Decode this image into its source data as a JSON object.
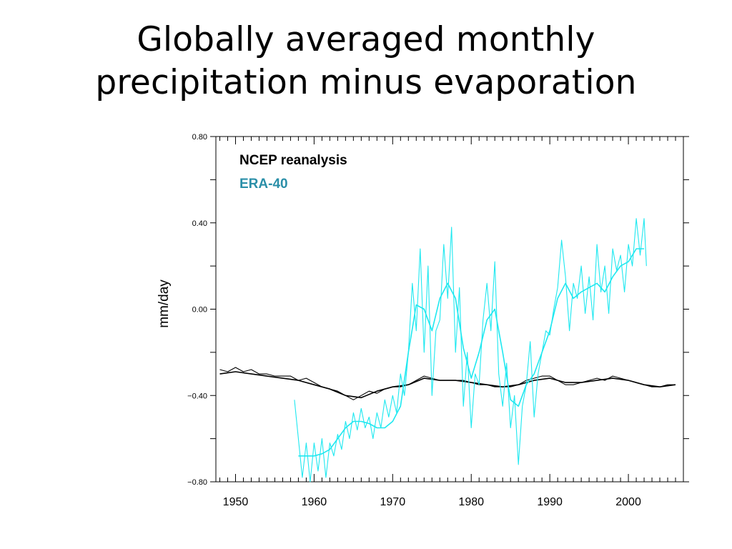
{
  "slide": {
    "title_line1": "Globally averaged monthly",
    "title_line2": "precipitation minus evaporation"
  },
  "chart_data": {
    "type": "line",
    "title": "",
    "xlabel": "",
    "ylabel": "mm/day",
    "xlim": [
      1947.5,
      2007
    ],
    "ylim": [
      -0.8,
      0.8
    ],
    "xticks": [
      1950,
      1960,
      1970,
      1980,
      1990,
      2000
    ],
    "xtick_labels": [
      "1950",
      "1960",
      "1970",
      "1980",
      "1990",
      "2000"
    ],
    "yticks": [
      -0.8,
      -0.4,
      0.0,
      0.4,
      0.8
    ],
    "ytick_labels": [
      "−0.80",
      "−0.40",
      "0.00",
      "0.40",
      "0.80"
    ],
    "grid": false,
    "legend_position": "top-left",
    "legend": [
      "NCEP reanalysis",
      "ERA-40"
    ],
    "colors": {
      "NCEP reanalysis": "#000000",
      "ERA-40": "#1ee8f0"
    },
    "series": [
      {
        "name": "NCEP reanalysis",
        "style": "monthly",
        "x": [
          1948,
          1949,
          1950,
          1951,
          1952,
          1953,
          1954,
          1955,
          1956,
          1957,
          1958,
          1959,
          1960,
          1961,
          1962,
          1963,
          1964,
          1965,
          1966,
          1967,
          1968,
          1969,
          1970,
          1971,
          1972,
          1973,
          1974,
          1975,
          1976,
          1977,
          1978,
          1979,
          1980,
          1981,
          1982,
          1983,
          1984,
          1985,
          1986,
          1987,
          1988,
          1989,
          1990,
          1991,
          1992,
          1993,
          1994,
          1995,
          1996,
          1997,
          1998,
          1999,
          2000,
          2001,
          2002,
          2003,
          2004,
          2005,
          2006
        ],
        "y": [
          -0.28,
          -0.29,
          -0.27,
          -0.29,
          -0.28,
          -0.3,
          -0.3,
          -0.31,
          -0.31,
          -0.31,
          -0.33,
          -0.32,
          -0.34,
          -0.36,
          -0.37,
          -0.38,
          -0.4,
          -0.42,
          -0.4,
          -0.38,
          -0.39,
          -0.37,
          -0.36,
          -0.36,
          -0.35,
          -0.33,
          -0.31,
          -0.32,
          -0.33,
          -0.33,
          -0.33,
          -0.33,
          -0.34,
          -0.35,
          -0.35,
          -0.36,
          -0.36,
          -0.36,
          -0.35,
          -0.33,
          -0.32,
          -0.31,
          -0.31,
          -0.33,
          -0.35,
          -0.35,
          -0.34,
          -0.33,
          -0.32,
          -0.33,
          -0.31,
          -0.32,
          -0.33,
          -0.34,
          -0.35,
          -0.36,
          -0.36,
          -0.35,
          -0.35
        ]
      },
      {
        "name": "NCEP reanalysis",
        "style": "smoothed",
        "x": [
          1948,
          1950,
          1952,
          1954,
          1956,
          1958,
          1960,
          1962,
          1964,
          1966,
          1968,
          1970,
          1972,
          1974,
          1976,
          1978,
          1980,
          1982,
          1984,
          1986,
          1988,
          1990,
          1992,
          1994,
          1996,
          1998,
          2000,
          2002,
          2004,
          2006
        ],
        "y": [
          -0.3,
          -0.29,
          -0.3,
          -0.31,
          -0.32,
          -0.33,
          -0.35,
          -0.37,
          -0.4,
          -0.41,
          -0.38,
          -0.36,
          -0.35,
          -0.32,
          -0.33,
          -0.33,
          -0.34,
          -0.35,
          -0.36,
          -0.35,
          -0.33,
          -0.32,
          -0.34,
          -0.34,
          -0.33,
          -0.32,
          -0.33,
          -0.35,
          -0.36,
          -0.35
        ]
      },
      {
        "name": "ERA-40",
        "style": "monthly",
        "x": [
          1957.5,
          1958.0,
          1958.5,
          1959.0,
          1959.5,
          1960.0,
          1960.5,
          1961.0,
          1961.5,
          1962.0,
          1962.5,
          1963.0,
          1963.5,
          1964.0,
          1964.5,
          1965.0,
          1965.5,
          1966.0,
          1966.5,
          1967.0,
          1967.5,
          1968.0,
          1968.5,
          1969.0,
          1969.5,
          1970.0,
          1970.5,
          1971.0,
          1971.5,
          1972.0,
          1972.5,
          1973.0,
          1973.5,
          1974.0,
          1974.5,
          1975.0,
          1975.5,
          1976.0,
          1976.5,
          1977.0,
          1977.5,
          1978.0,
          1978.5,
          1979.0,
          1979.5,
          1980.0,
          1980.5,
          1981.0,
          1981.5,
          1982.0,
          1982.5,
          1983.0,
          1983.5,
          1984.0,
          1984.5,
          1985.0,
          1985.5,
          1986.0,
          1986.5,
          1987.0,
          1987.5,
          1988.0,
          1988.5,
          1989.0,
          1989.5,
          1990.0,
          1990.5,
          1991.0,
          1991.5,
          1992.0,
          1992.5,
          1993.0,
          1993.5,
          1994.0,
          1994.5,
          1995.0,
          1995.5,
          1996.0,
          1996.5,
          1997.0,
          1997.5,
          1998.0,
          1998.5,
          1999.0,
          1999.5,
          2000.0,
          2000.5,
          2001.0,
          2001.5,
          2002.0,
          2002.3
        ],
        "y": [
          -0.42,
          -0.6,
          -0.78,
          -0.62,
          -0.8,
          -0.62,
          -0.75,
          -0.6,
          -0.78,
          -0.62,
          -0.68,
          -0.58,
          -0.65,
          -0.52,
          -0.6,
          -0.48,
          -0.56,
          -0.46,
          -0.55,
          -0.5,
          -0.6,
          -0.48,
          -0.55,
          -0.42,
          -0.5,
          -0.4,
          -0.48,
          -0.3,
          -0.4,
          -0.2,
          0.12,
          -0.1,
          0.28,
          -0.2,
          0.2,
          -0.4,
          -0.1,
          -0.05,
          0.3,
          0.05,
          0.38,
          -0.2,
          0.1,
          -0.45,
          -0.2,
          -0.55,
          -0.3,
          -0.35,
          -0.05,
          0.12,
          -0.1,
          0.22,
          -0.3,
          -0.45,
          -0.25,
          -0.55,
          -0.4,
          -0.72,
          -0.45,
          -0.35,
          -0.15,
          -0.5,
          -0.3,
          -0.2,
          -0.1,
          -0.12,
          0.0,
          0.1,
          0.32,
          0.15,
          -0.1,
          0.12,
          0.05,
          0.2,
          -0.02,
          0.15,
          -0.05,
          0.3,
          0.08,
          0.2,
          -0.02,
          0.28,
          0.18,
          0.25,
          0.08,
          0.3,
          0.2,
          0.42,
          0.25,
          0.42,
          0.2
        ]
      },
      {
        "name": "ERA-40",
        "style": "smoothed",
        "x": [
          1958,
          1959,
          1960,
          1961,
          1962,
          1963,
          1964,
          1965,
          1966,
          1967,
          1968,
          1969,
          1970,
          1971,
          1972,
          1973,
          1974,
          1975,
          1976,
          1977,
          1978,
          1979,
          1980,
          1981,
          1982,
          1983,
          1984,
          1985,
          1986,
          1987,
          1988,
          1989,
          1990,
          1991,
          1992,
          1993,
          1994,
          1995,
          1996,
          1997,
          1998,
          1999,
          2000,
          2001,
          2002
        ],
        "y": [
          -0.68,
          -0.68,
          -0.68,
          -0.67,
          -0.65,
          -0.6,
          -0.55,
          -0.52,
          -0.52,
          -0.53,
          -0.55,
          -0.55,
          -0.52,
          -0.45,
          -0.2,
          0.02,
          0.0,
          -0.1,
          0.05,
          0.12,
          0.05,
          -0.18,
          -0.32,
          -0.2,
          -0.05,
          0.0,
          -0.2,
          -0.42,
          -0.45,
          -0.35,
          -0.3,
          -0.2,
          -0.1,
          0.05,
          0.12,
          0.05,
          0.08,
          0.1,
          0.12,
          0.08,
          0.15,
          0.2,
          0.22,
          0.28,
          0.28
        ]
      }
    ]
  }
}
